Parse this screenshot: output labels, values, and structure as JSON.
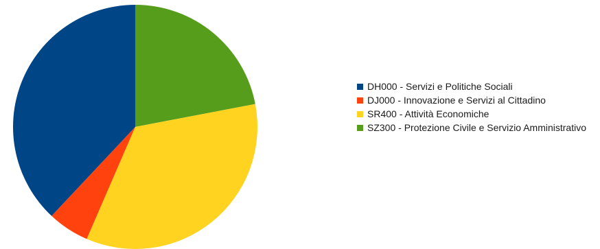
{
  "chart_data": {
    "type": "pie",
    "title": "",
    "legend_position": "right",
    "slices": [
      {
        "label": "DH000 - Servizi e Politiche Sociali",
        "value": 38,
        "color": "#004586"
      },
      {
        "label": "DJ000 - Innovazione e Servizi al Cittadino",
        "value": 5.5,
        "color": "#ff420e"
      },
      {
        "label": "SR400 - Attività Economiche",
        "value": 34.5,
        "color": "#ffd320"
      },
      {
        "label": "SZ300 - Protezione Civile e Servizio Amministrativo",
        "value": 22,
        "color": "#579d1c"
      }
    ],
    "drawing_order": [
      3,
      2,
      1,
      0
    ]
  }
}
